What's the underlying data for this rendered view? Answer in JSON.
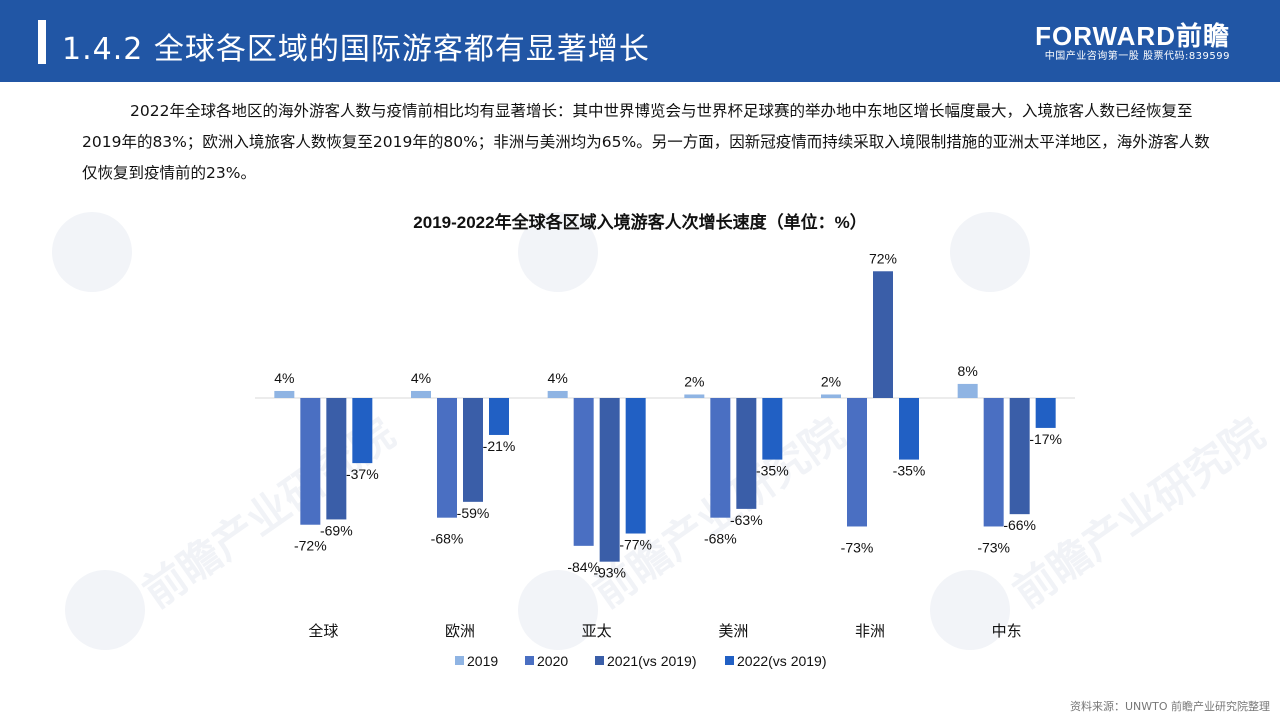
{
  "header": {
    "title": "1.4.2 全球各区域的国际游客都有显著增长",
    "logo_main": "FORWARD前瞻",
    "logo_sub": "中国产业咨询第一股 股票代码:839599"
  },
  "intro_text": "2022年全球各地区的海外游客人数与疫情前相比均有显著增长：其中世界博览会与世界杯足球赛的举办地中东地区增长幅度最大，入境旅客人数已经恢复至2019年的83%；欧洲入境旅客人数恢复至2019年的80%；非洲与美洲均为65%。另一方面，因新冠疫情而持续采取入境限制措施的亚洲太平洋地区，海外游客人数仅恢复到疫情前的23%。",
  "watermark_text": "前瞻产业研究院",
  "source": "资料来源：UNWTO 前瞻产业研究院整理",
  "chart_data": {
    "type": "bar",
    "title": "2019-2022年全球各区域入境游客人次增长速度（单位：%）",
    "xlabel": "",
    "ylabel": "",
    "categories": [
      "全球",
      "欧洲",
      "亚太",
      "美洲",
      "非洲",
      "中东"
    ],
    "series": [
      {
        "name": "2019",
        "color": "#8fb4e3",
        "values": [
          4,
          4,
          4,
          2,
          2,
          8
        ]
      },
      {
        "name": "2020",
        "color": "#4a6fc2",
        "values": [
          -72,
          -68,
          -84,
          -68,
          -73,
          -73
        ]
      },
      {
        "name": "2021(vs 2019)",
        "color": "#3a5ea8",
        "values": [
          -69,
          -59,
          -93,
          -63,
          72,
          -66
        ]
      },
      {
        "name": "2022(vs 2019)",
        "color": "#2160c4",
        "values": [
          -37,
          -21,
          -77,
          -35,
          -35,
          -17
        ]
      }
    ],
    "ylim": [
      -100,
      80
    ],
    "grid": false,
    "legend": "bottom",
    "value_suffix": "%"
  }
}
